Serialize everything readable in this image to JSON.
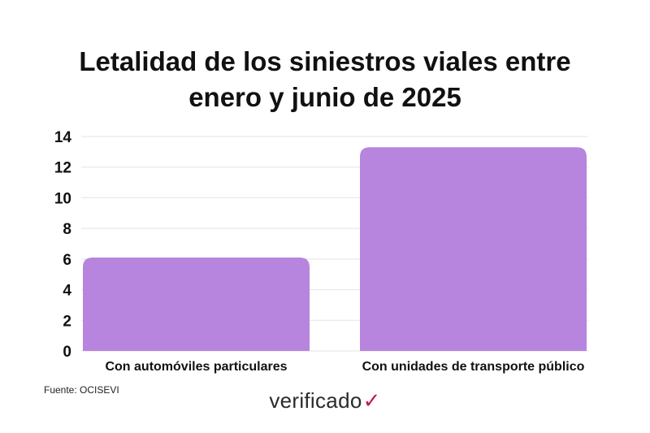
{
  "chart_data": {
    "type": "bar",
    "title_lines": [
      "Letalidad de los siniestros viales entre",
      "enero y junio de 2025"
    ],
    "categories": [
      "Con automóviles particulares",
      "Con unidades de transporte público"
    ],
    "values": [
      6.1,
      13.3
    ],
    "ylim": [
      0,
      14
    ],
    "yticks": [
      0,
      2,
      4,
      6,
      8,
      10,
      12,
      14
    ],
    "grid": true,
    "bar_color": "#b785de",
    "grid_color": "#e3e3e3"
  },
  "source": "Fuente: OCISEVI",
  "logo": {
    "text": "verificado",
    "mark": "✓"
  }
}
